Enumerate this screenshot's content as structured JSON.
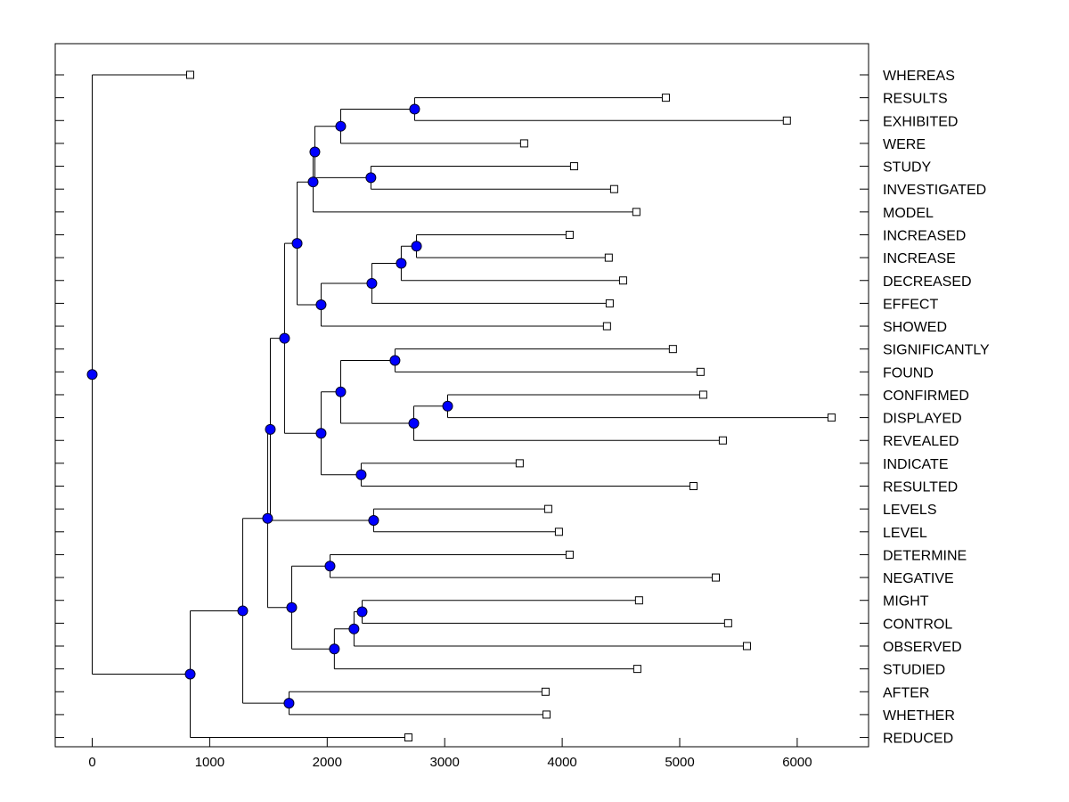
{
  "chart_data": {
    "type": "dendrogram",
    "title": "",
    "xlabel": "",
    "ylabel": "",
    "xlim": [
      -310,
      6560
    ],
    "xticks": [
      "0",
      "1000",
      "2000",
      "3000",
      "4000",
      "5000",
      "6000"
    ],
    "xtick_values": [
      0,
      1000,
      2000,
      3000,
      4000,
      5000,
      6000
    ],
    "grid": false,
    "colors": {
      "node": "#0000ff",
      "leaf": "#ffffff",
      "line": "#000000"
    },
    "tree": {
      "h": 0,
      "children": [
        {
          "label": "WHEREAS",
          "h": 834
        },
        {
          "h": 834,
          "children": [
            {
              "h": 1281,
              "children": [
                {
                  "h": 1493,
                  "children": [
                    {
                      "h": 1516,
                      "children": [
                        {
                          "h": 1637,
                          "children": [
                            {
                              "h": 1744,
                              "children": [
                                {
                                  "h": 1880,
                                  "children": [
                                    {
                                      "h": 1895,
                                      "children": [
                                        {
                                          "h": 2115,
                                          "children": [
                                            {
                                              "h": 2744,
                                              "children": [
                                                {
                                                  "label": "RESULTS",
                                                  "h": 4882
                                                },
                                                {
                                                  "label": "EXHIBITED",
                                                  "h": 5912
                                                }
                                              ]
                                            },
                                            {
                                              "label": "WERE",
                                              "h": 3676
                                            }
                                          ]
                                        },
                                        {
                                          "h": 2372,
                                          "children": [
                                            {
                                              "label": "STUDY",
                                              "h": 4101
                                            },
                                            {
                                              "label": "INVESTIGATED",
                                              "h": 4442
                                            }
                                          ]
                                        }
                                      ]
                                    },
                                    {
                                      "label": "MODEL",
                                      "h": 4631
                                    }
                                  ]
                                },
                                {
                                  "h": 1948,
                                  "children": [
                                    {
                                      "h": 2380,
                                      "children": [
                                        {
                                          "h": 2630,
                                          "children": [
                                            {
                                              "h": 2760,
                                              "children": [
                                                {
                                                  "label": "INCREASED",
                                                  "h": 4063
                                                },
                                                {
                                                  "label": "INCREASE",
                                                  "h": 4396
                                                }
                                              ]
                                            },
                                            {
                                              "label": "DECREASED",
                                              "h": 4518
                                            }
                                          ]
                                        },
                                        {
                                          "label": "EFFECT",
                                          "h": 4404
                                        }
                                      ]
                                    },
                                    {
                                      "label": "SHOWED",
                                      "h": 4381
                                    }
                                  ]
                                }
                              ]
                            },
                            {
                              "h": 1948,
                              "children": [
                                {
                                  "h": 2115,
                                  "children": [
                                    {
                                      "h": 2577,
                                      "children": [
                                        {
                                          "label": "SIGNIFICANTLY",
                                          "h": 4942
                                        },
                                        {
                                          "label": "FOUND",
                                          "h": 5177
                                        }
                                      ]
                                    },
                                    {
                                      "h": 2737,
                                      "children": [
                                        {
                                          "h": 3025,
                                          "children": [
                                            {
                                              "label": "CONFIRMED",
                                              "h": 5200
                                            },
                                            {
                                              "label": "DISPLAYED",
                                              "h": 6292
                                            }
                                          ]
                                        },
                                        {
                                          "label": "REVEALED",
                                          "h": 5367
                                        }
                                      ]
                                    }
                                  ]
                                },
                                {
                                  "h": 2289,
                                  "children": [
                                    {
                                      "label": "INDICATE",
                                      "h": 3638
                                    },
                                    {
                                      "label": "RESULTED",
                                      "h": 5117
                                    }
                                  ]
                                }
                              ]
                            }
                          ]
                        },
                        {
                          "h": 2395,
                          "children": [
                            {
                              "label": "LEVELS",
                              "h": 3881
                            },
                            {
                              "label": "LEVEL",
                              "h": 3972
                            }
                          ]
                        }
                      ]
                    },
                    {
                      "h": 1698,
                      "children": [
                        {
                          "h": 2024,
                          "children": [
                            {
                              "label": "DETERMINE",
                              "h": 4063
                            },
                            {
                              "label": "NEGATIVE",
                              "h": 5307
                            }
                          ]
                        },
                        {
                          "h": 2061,
                          "children": [
                            {
                              "h": 2228,
                              "children": [
                                {
                                  "h": 2297,
                                  "children": [
                                    {
                                      "label": "MIGHT",
                                      "h": 4654
                                    },
                                    {
                                      "label": "CONTROL",
                                      "h": 5412
                                    }
                                  ]
                                },
                                {
                                  "label": "OBSERVED",
                                  "h": 5572
                                }
                              ]
                            },
                            {
                              "label": "STUDIED",
                              "h": 4639
                            }
                          ]
                        }
                      ]
                    }
                  ]
                },
                {
                  "h": 1675,
                  "children": [
                    {
                      "label": "AFTER",
                      "h": 3858
                    },
                    {
                      "label": "WHETHER",
                      "h": 3866
                    }
                  ]
                }
              ]
            },
            {
              "label": "REDUCED",
              "h": 2691
            }
          ]
        }
      ]
    }
  }
}
